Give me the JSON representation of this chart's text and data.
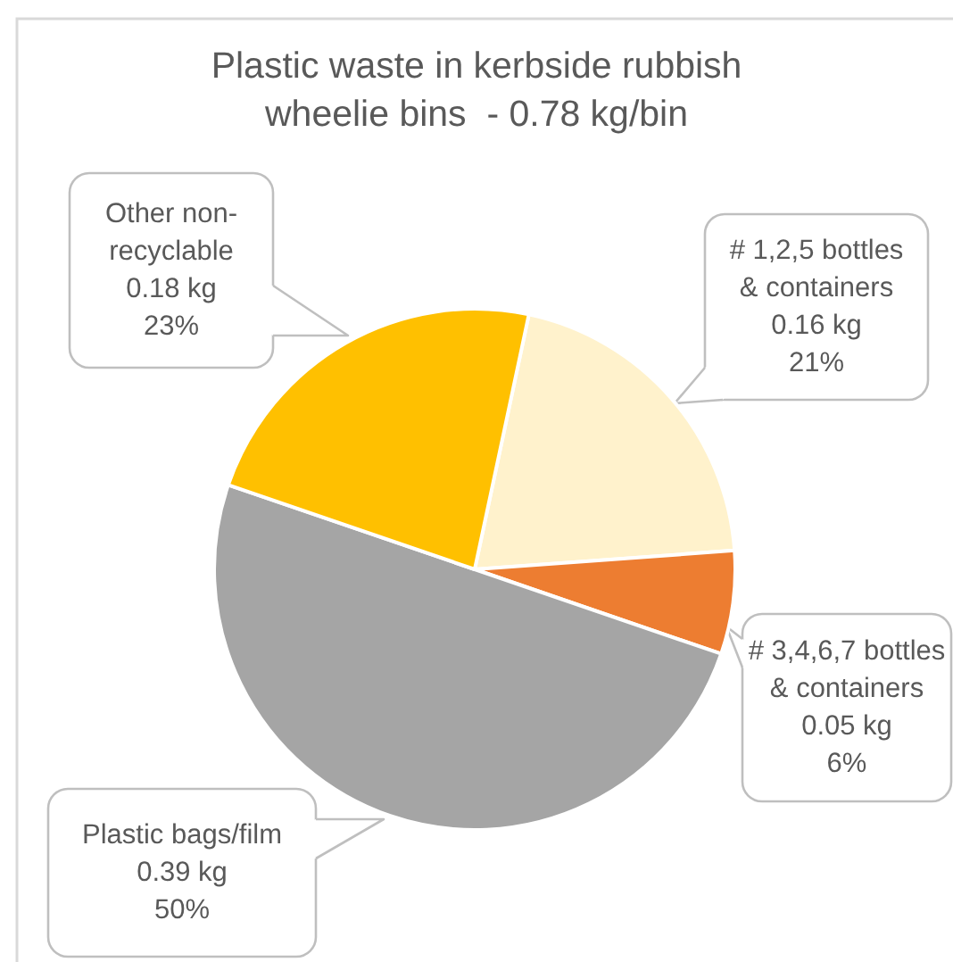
{
  "chart_data": {
    "type": "pie",
    "title": "Plastic waste in kerbside rubbish wheelie bins  - 0.78 kg/bin",
    "categories": [
      "# 1,2,5 bottles & containers",
      "# 3,4,6,7 bottles & containers",
      "Plastic bags/film",
      "Other non-recyclable"
    ],
    "values": [
      0.16,
      0.05,
      0.39,
      0.18
    ],
    "colors": [
      "#fff2cc",
      "#ed7d31",
      "#a5a5a5",
      "#ffc000"
    ],
    "value_labels": [
      "0.16 kg\n21%",
      "0.05 kg\n6%",
      "0.39 kg\n50%",
      "0.18 kg\n23%"
    ],
    "legend": false
  }
}
